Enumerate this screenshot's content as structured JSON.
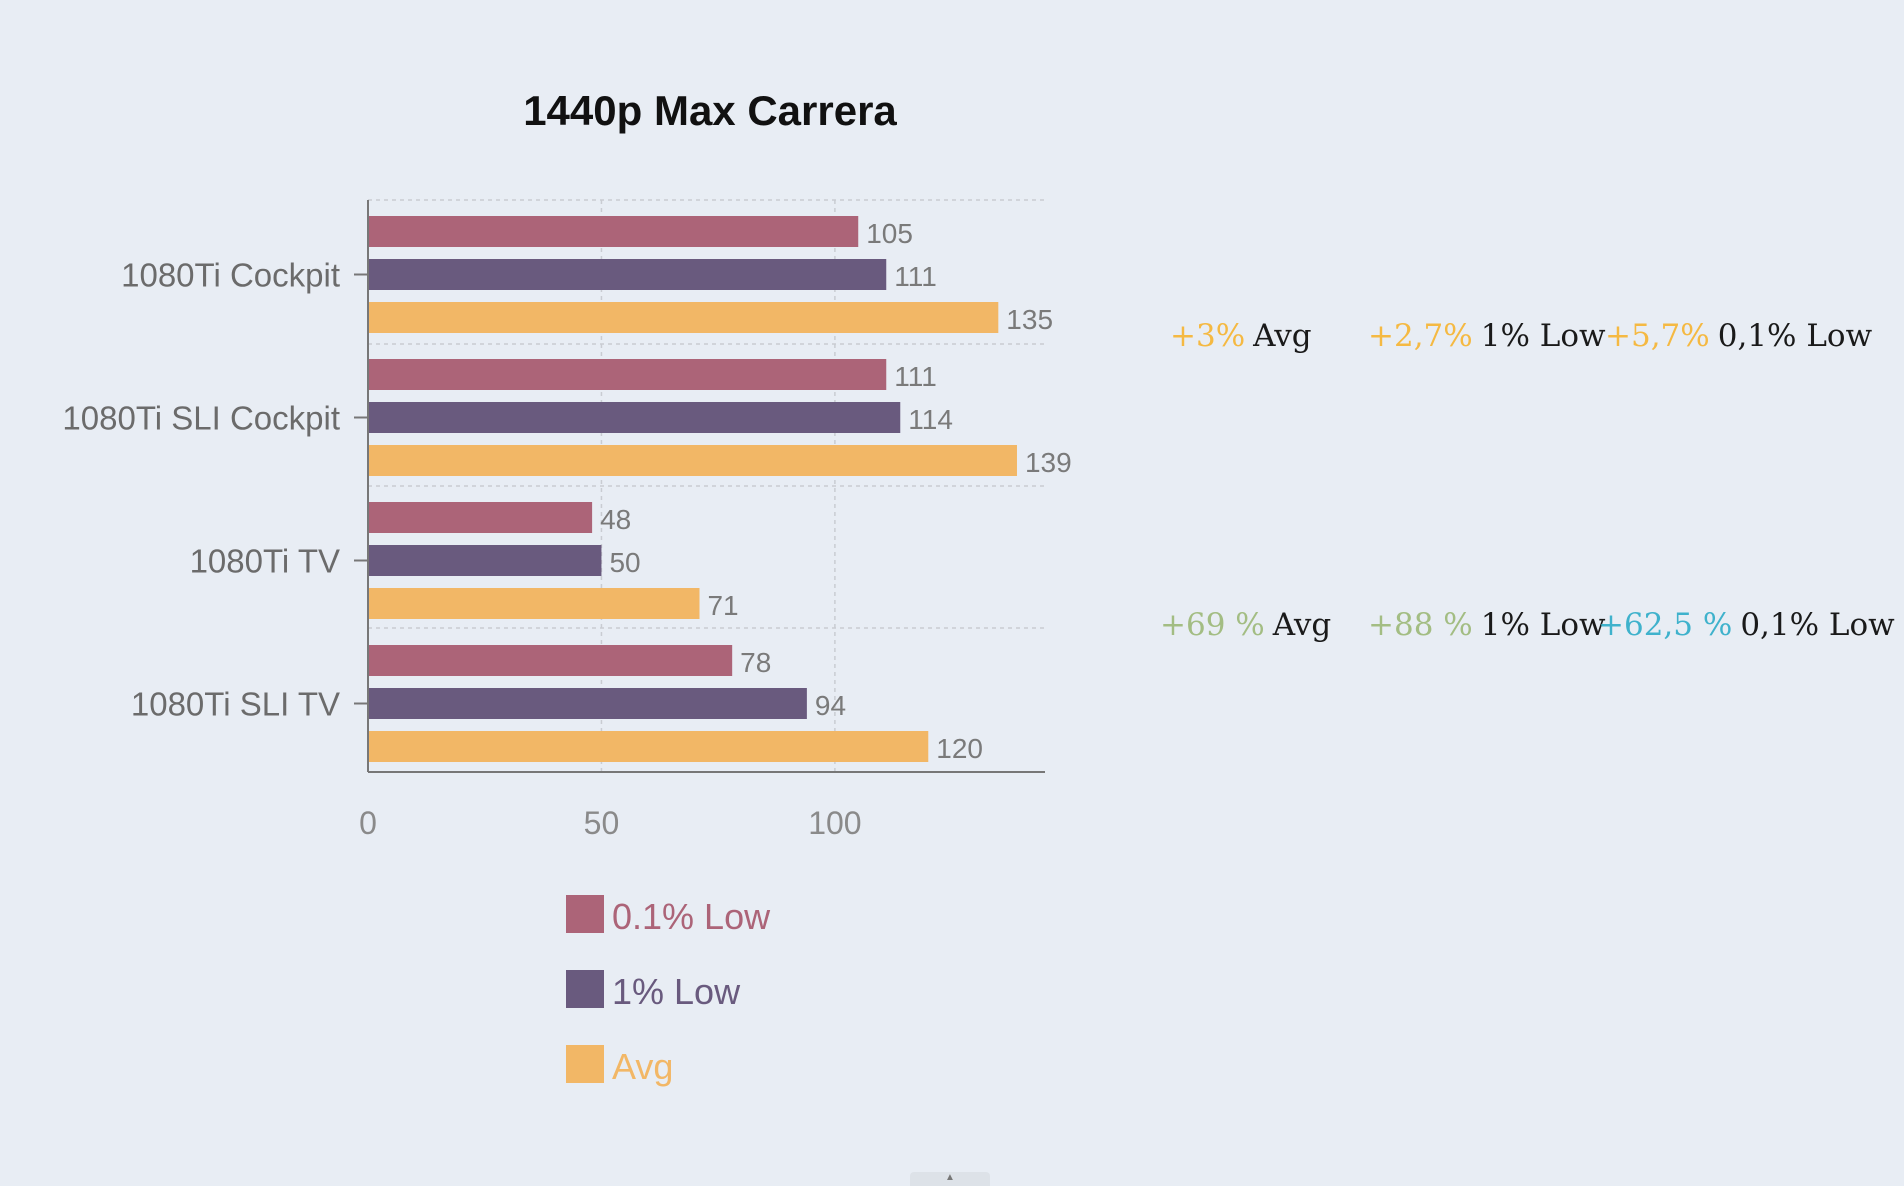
{
  "chart_data": {
    "type": "bar",
    "orientation": "horizontal",
    "title": "1440p Max Carrera",
    "categories": [
      "1080Ti Cockpit",
      "1080Ti SLI Cockpit",
      "1080Ti TV",
      "1080Ti SLI TV"
    ],
    "series": [
      {
        "name": "0.1% Low",
        "color": "#ac6478",
        "values": [
          105,
          111,
          48,
          78
        ]
      },
      {
        "name": "1% Low",
        "color": "#695a7e",
        "values": [
          111,
          114,
          50,
          94
        ]
      },
      {
        "name": "Avg",
        "color": "#f2b766",
        "values": [
          135,
          139,
          71,
          120
        ]
      }
    ],
    "xlim": [
      0,
      145
    ],
    "xticks": [
      0,
      50,
      100
    ],
    "grid": true,
    "legend_position": "bottom"
  },
  "annotations": [
    {
      "items": [
        {
          "delta": "+3%",
          "metric": "Avg",
          "color": "#f5b942"
        },
        {
          "delta": "+2,7%",
          "metric": "1% Low",
          "color": "#f5b942"
        },
        {
          "delta": "+5,7%",
          "metric": "0,1% Low",
          "color": "#f5b942"
        }
      ]
    },
    {
      "items": [
        {
          "delta": "+69 %",
          "metric": "Avg",
          "color": "#a3bd83"
        },
        {
          "delta": "+88 %",
          "metric": "1% Low",
          "color": "#a3bd83"
        },
        {
          "delta": "+62,5 %",
          "metric": "0,1% Low",
          "color": "#3fb2cc"
        }
      ]
    }
  ]
}
